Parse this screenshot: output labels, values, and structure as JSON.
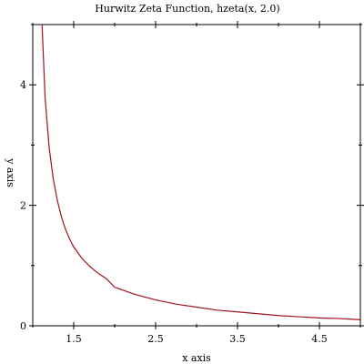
{
  "chart_data": {
    "type": "line",
    "title": "Hurwitz Zeta Function, hzeta(x, 2.0)",
    "xlabel": "x axis",
    "ylabel": "y axis",
    "xlim": [
      1.0,
      5.0
    ],
    "ylim": [
      0,
      5
    ],
    "x_ticks": [
      1.5,
      2.5,
      3.5,
      4.5
    ],
    "x_tick_labels": [
      "1.5",
      "2.5",
      "3.5",
      "4.5"
    ],
    "x_minor_ticks": [
      1.0,
      2.0,
      3.0,
      4.0,
      5.0
    ],
    "y_ticks": [
      0,
      2,
      4
    ],
    "y_tick_labels": [
      "0",
      "2",
      "4"
    ],
    "y_minor_ticks": [
      1,
      3,
      5
    ],
    "grid": false,
    "series": [
      {
        "color": "#a0141e",
        "x": [
          1.1,
          1.15,
          1.2,
          1.25,
          1.3,
          1.35,
          1.4,
          1.45,
          1.5,
          1.6,
          1.7,
          1.8,
          1.9,
          2.0,
          2.25,
          2.5,
          2.75,
          3.0,
          3.25,
          3.5,
          3.75,
          4.0,
          4.25,
          4.5,
          4.75,
          5.0
        ],
        "y": [
          5.45,
          3.8,
          2.96,
          2.44,
          2.08,
          1.81,
          1.6,
          1.44,
          1.31,
          1.12,
          0.98,
          0.87,
          0.78,
          0.64,
          0.52,
          0.43,
          0.36,
          0.31,
          0.26,
          0.23,
          0.2,
          0.17,
          0.15,
          0.13,
          0.12,
          0.1
        ]
      }
    ]
  }
}
